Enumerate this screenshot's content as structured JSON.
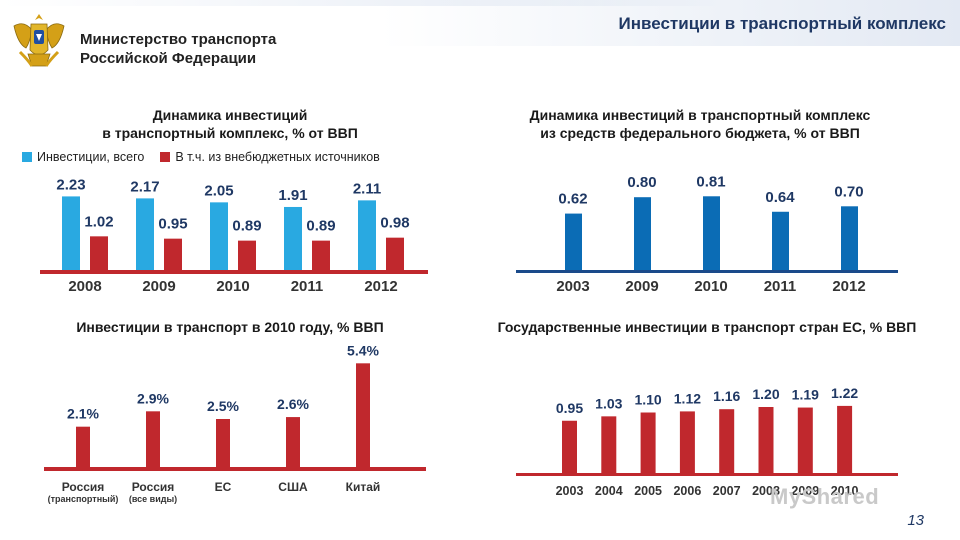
{
  "header": {
    "slide_title": "Инвестиции в транспортный комплекс",
    "ministry_line1": "Министерство транспорта",
    "ministry_line2": "Российской Федерации"
  },
  "colors": {
    "title": "#1f3864",
    "light_blue": "#29a9e1",
    "red": "#c0282d",
    "dark_blue": "#0b6cb5",
    "label": "#1f3864"
  },
  "chart_data": [
    {
      "type": "bar",
      "title_line1": "Динамика инвестиций",
      "title_line2": "в транспортный комплекс, % от ВВП",
      "categories": [
        "2008",
        "2009",
        "2010",
        "2011",
        "2012"
      ],
      "series": [
        {
          "name": "Инвестиции, всего",
          "values": [
            2.23,
            2.17,
            2.05,
            1.91,
            2.11
          ],
          "labels": [
            "2.23",
            "2.17",
            "2.05",
            "1.91",
            "2.11"
          ]
        },
        {
          "name": "В т.ч. из внебюджетных источников",
          "values": [
            1.02,
            0.95,
            0.89,
            0.89,
            0.98
          ],
          "labels": [
            "1.02",
            "0.95",
            "0.89",
            "0.89",
            "0.98"
          ]
        }
      ],
      "legend": "top",
      "grid": false
    },
    {
      "type": "bar",
      "title_line1": "Динамика инвестиций в транспортный комплекс",
      "title_line2": "из средств федерального бюджета, % от ВВП",
      "categories": [
        "2003",
        "2009",
        "2010",
        "2011",
        "2012"
      ],
      "values": [
        0.62,
        0.8,
        0.81,
        0.64,
        0.7
      ],
      "labels": [
        "0.62",
        "0.80",
        "0.81",
        "0.64",
        "0.70"
      ],
      "grid": false
    },
    {
      "type": "bar",
      "title": "Инвестиции в транспорт в 2010 году,  % ВВП",
      "categories": [
        "Россия",
        "Россия",
        "ЕС",
        "США",
        "Китай"
      ],
      "subcategories": [
        "(транспортный)",
        "(все виды)",
        "",
        "",
        ""
      ],
      "values": [
        2.1,
        2.9,
        2.5,
        2.6,
        5.4
      ],
      "labels": [
        "2.1%",
        "2.9%",
        "2.5%",
        "2.6%",
        "5.4%"
      ],
      "grid": false
    },
    {
      "type": "bar",
      "title": "Государственные инвестиции в транспорт стран ЕС, % ВВП",
      "categories": [
        "2003",
        "2004",
        "2005",
        "2006",
        "2007",
        "2008",
        "2009",
        "2010"
      ],
      "values": [
        0.95,
        1.03,
        1.1,
        1.12,
        1.16,
        1.2,
        1.19,
        1.22
      ],
      "labels": [
        "0.95",
        "1.03",
        "1.10",
        "1.12",
        "1.16",
        "1.20",
        "1.19",
        "1.22"
      ],
      "grid": false
    }
  ],
  "footer": {
    "watermark": "MyShared",
    "page_number": "13"
  }
}
